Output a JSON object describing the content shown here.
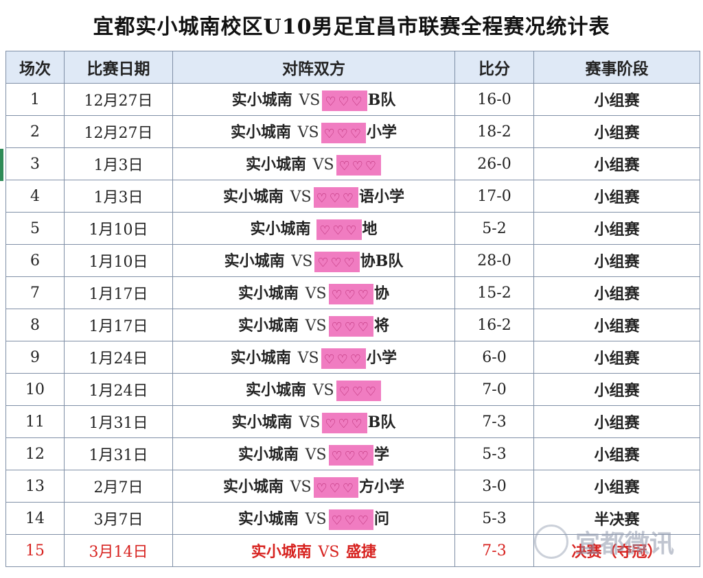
{
  "title": "宜都实小城南校区U10男足宜昌市联赛全程赛况统计表",
  "headers": [
    "场次",
    "比赛日期",
    "对阵双方",
    "比分",
    "赛事阶段"
  ],
  "rows": [
    {
      "no": "1",
      "date": "12月27日",
      "home": "实小城南",
      "vs": "VS",
      "prefix": "",
      "suffix": "B队",
      "score": "16-0",
      "stage": "小组赛"
    },
    {
      "no": "2",
      "date": "12月27日",
      "home": "实小城南",
      "vs": "VS",
      "prefix": "",
      "suffix": "小学",
      "score": "18-2",
      "stage": "小组赛"
    },
    {
      "no": "3",
      "date": "1月3日",
      "home": "实小城南",
      "vs": "VS",
      "prefix": "",
      "suffix": "",
      "score": "26-0",
      "stage": "小组赛"
    },
    {
      "no": "4",
      "date": "1月3日",
      "home": "实小城南",
      "vs": "VS",
      "prefix": "",
      "suffix": "语小学",
      "score": "17-0",
      "stage": "小组赛"
    },
    {
      "no": "5",
      "date": "1月10日",
      "home": "实小城南",
      "vs": "",
      "prefix": "",
      "suffix": "地",
      "score": "5-2",
      "stage": "小组赛"
    },
    {
      "no": "6",
      "date": "1月10日",
      "home": "实小城南",
      "vs": "VS",
      "prefix": "",
      "suffix": "协B队",
      "score": "28-0",
      "stage": "小组赛"
    },
    {
      "no": "7",
      "date": "1月17日",
      "home": "实小城南",
      "vs": "VS",
      "prefix": "",
      "suffix": "协",
      "score": "15-2",
      "stage": "小组赛"
    },
    {
      "no": "8",
      "date": "1月17日",
      "home": "实小城南",
      "vs": "VS",
      "prefix": "",
      "suffix": "将",
      "score": "16-2",
      "stage": "小组赛"
    },
    {
      "no": "9",
      "date": "1月24日",
      "home": "实小城南",
      "vs": "VS",
      "prefix": "",
      "suffix": "小学",
      "score": "6-0",
      "stage": "小组赛"
    },
    {
      "no": "10",
      "date": "1月24日",
      "home": "实小城南",
      "vs": "VS",
      "prefix": "",
      "suffix": "",
      "score": "7-0",
      "stage": "小组赛"
    },
    {
      "no": "11",
      "date": "1月31日",
      "home": "实小城南",
      "vs": "VS",
      "prefix": "",
      "suffix": "B队",
      "score": "7-3",
      "stage": "小组赛"
    },
    {
      "no": "12",
      "date": "1月31日",
      "home": "实小城南",
      "vs": "VS",
      "prefix": "",
      "suffix": "学",
      "score": "5-3",
      "stage": "小组赛"
    },
    {
      "no": "13",
      "date": "2月7日",
      "home": "实小城南",
      "vs": "VS",
      "prefix": "",
      "suffix": "方小学",
      "score": "3-0",
      "stage": "小组赛"
    },
    {
      "no": "14",
      "date": "3月7日",
      "home": "实小城南",
      "vs": "VS",
      "prefix": "",
      "suffix": "问",
      "score": "5-3",
      "stage": "半决赛"
    }
  ],
  "final": {
    "no": "15",
    "date": "3月14日",
    "home": "实小城南",
    "vs": "VS",
    "opponent": "盛捷",
    "score": "7-3",
    "stage": "决赛（夺冠）"
  },
  "redaction": {
    "symbol": "♡♡♡",
    "color": "#f07cc1"
  },
  "watermark": {
    "text": "宜都微讯"
  },
  "colors": {
    "header_bg": "#dfe9f6",
    "final_text": "#d7221f",
    "border": "#7f8fa6"
  }
}
